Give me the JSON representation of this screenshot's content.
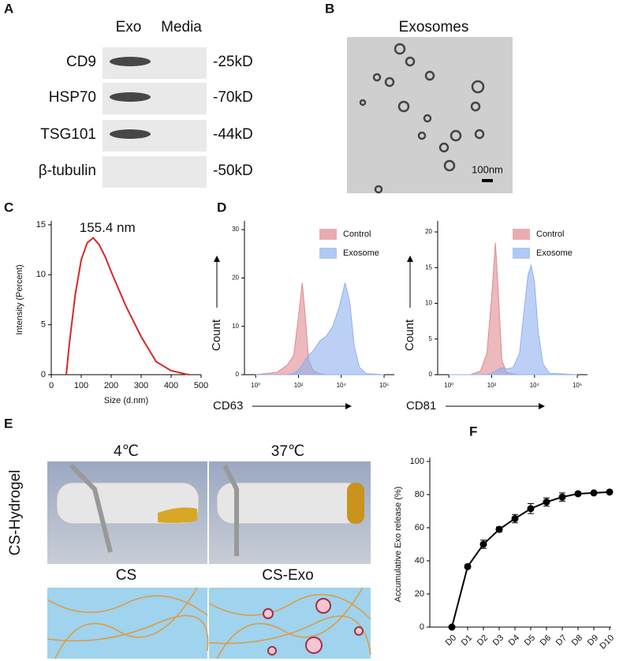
{
  "panel_labels": [
    "A",
    "B",
    "C",
    "D",
    "E",
    "F"
  ],
  "blot": {
    "columns": [
      "Exo",
      "Media"
    ],
    "rows": [
      {
        "protein": "CD9",
        "size": "-25kD"
      },
      {
        "protein": "HSP70",
        "size": "-70kD"
      },
      {
        "protein": "TSG101",
        "size": "-44kD"
      },
      {
        "protein": "β-tubulin",
        "size": "-50kD"
      }
    ]
  },
  "em": {
    "title": "Exosomes",
    "scale": "100nm"
  },
  "hydrogel": {
    "side_label": "CS-Hydrogel",
    "temps": [
      "4℃",
      "37℃"
    ],
    "schematic": [
      "CS",
      "CS-Exo"
    ]
  },
  "chart_data": [
    {
      "type": "line",
      "annotation": "155.4 nm",
      "xlabel": "Size (d.nm)",
      "ylabel": "Intensity (Percent)",
      "color": "#d62728",
      "x": [
        50,
        60,
        80,
        100,
        120,
        140,
        160,
        180,
        200,
        250,
        300,
        350,
        400,
        450,
        460
      ],
      "values": [
        0,
        3,
        8,
        11.5,
        13.2,
        13.7,
        13,
        11.8,
        10.3,
        6.8,
        3.8,
        1.3,
        0.4,
        0.05,
        0
      ],
      "xlim": [
        0,
        500
      ],
      "xticks": [
        0,
        100,
        200,
        300,
        400,
        500
      ],
      "ylim": [
        0,
        15
      ],
      "yticks": [
        0,
        5,
        10,
        15
      ]
    },
    {
      "type": "area",
      "xlabel": "CD63",
      "ylabel": "Count",
      "log_x": true,
      "legend": "upper right",
      "x": [
        1,
        10,
        30,
        60,
        100,
        150,
        200,
        300,
        500,
        1000,
        2000,
        4000,
        8000,
        15000,
        25000,
        40000,
        70000,
        150000,
        1000000
      ],
      "series": [
        {
          "name": "Control",
          "color": "#e08a8f",
          "values": [
            0,
            0.5,
            2,
            4,
            12,
            19,
            13,
            3,
            0.8,
            0.2,
            0,
            0,
            0,
            0,
            0,
            0,
            0,
            0,
            0
          ]
        },
        {
          "name": "Exosome",
          "color": "#8fb0f0",
          "values": [
            0,
            0,
            0,
            0.3,
            1,
            2,
            3,
            4,
            5,
            7,
            8,
            10,
            14,
            19,
            15,
            6,
            1.5,
            0.2,
            0
          ]
        }
      ],
      "xlim": [
        0.3,
        3000000
      ],
      "xticks": [
        {
          "value": 1,
          "label": "10⁰"
        },
        {
          "value": 100,
          "label": "10²"
        },
        {
          "value": 10000,
          "label": "10⁴"
        },
        {
          "value": 1000000,
          "label": "10⁶"
        }
      ],
      "ylim": [
        0,
        31
      ],
      "yticks": [
        0,
        10,
        20,
        30
      ]
    },
    {
      "type": "area",
      "xlabel": "CD81",
      "ylabel": "Count",
      "log_x": true,
      "legend": "upper right",
      "x": [
        1,
        10,
        30,
        60,
        100,
        150,
        200,
        300,
        500,
        1000,
        2000,
        3000,
        5000,
        7000,
        10000,
        15000,
        25000,
        50000,
        1000000
      ],
      "series": [
        {
          "name": "Control",
          "color": "#e08a8f",
          "values": [
            0,
            0,
            0.5,
            3,
            11,
            18.5,
            12,
            2,
            0.3,
            0.1,
            0,
            0,
            0,
            0,
            0,
            0,
            0,
            0,
            0
          ]
        },
        {
          "name": "Exosome",
          "color": "#8fb0f0",
          "values": [
            0,
            0,
            0,
            0,
            0.2,
            0.5,
            0.8,
            1,
            0.8,
            1,
            3,
            8,
            14,
            15.3,
            13,
            6,
            1.5,
            0.2,
            0
          ]
        }
      ],
      "xlim": [
        0.3,
        3000000
      ],
      "xticks": [
        {
          "value": 1,
          "label": "10⁰"
        },
        {
          "value": 100,
          "label": "10²"
        },
        {
          "value": 10000,
          "label": "10⁴"
        },
        {
          "value": 1000000,
          "label": "10⁶"
        }
      ],
      "ylim": [
        0,
        21
      ],
      "yticks": [
        0,
        5,
        10,
        15,
        20
      ]
    },
    {
      "type": "line",
      "ylabel": "Accumulative Exo release (%)",
      "color": "#000000",
      "categories": [
        "D0",
        "D1",
        "D2",
        "D3",
        "D4",
        "D5",
        "D6",
        "D7",
        "D8",
        "D9",
        "D10"
      ],
      "values": [
        0,
        36.5,
        50,
        59,
        65.5,
        71.5,
        75.5,
        78.5,
        80.5,
        81,
        81.5
      ],
      "errors": [
        0,
        1,
        2.5,
        1.5,
        2.5,
        3,
        2.5,
        2.5,
        1,
        0.5,
        0.5
      ],
      "ylim": [
        0,
        100
      ],
      "yticks": [
        0,
        20,
        40,
        60,
        80,
        100
      ]
    }
  ]
}
